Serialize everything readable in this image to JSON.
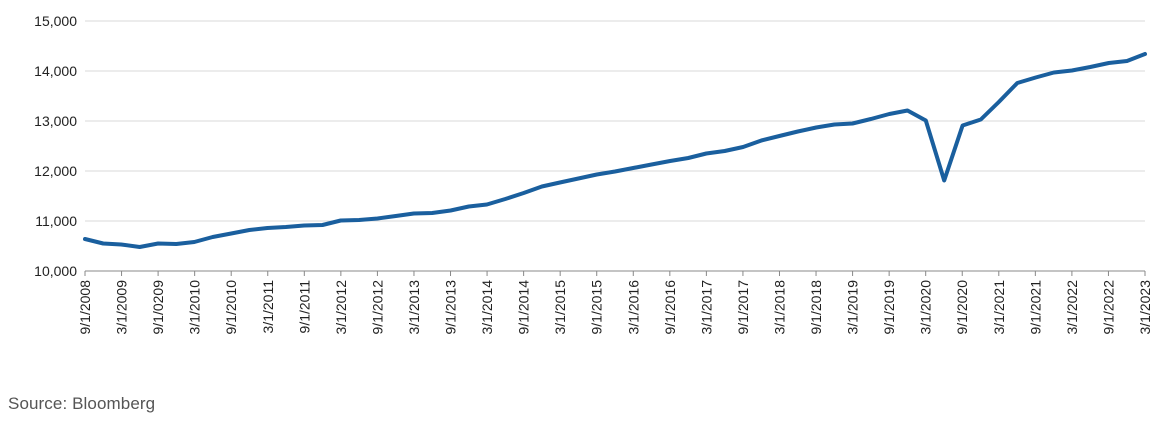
{
  "source_note": "Source: Bloomberg",
  "chart_data": {
    "type": "line",
    "title": "",
    "xlabel": "",
    "ylabel": "",
    "ylim": [
      10000,
      15000
    ],
    "yticks": [
      10000,
      11000,
      12000,
      13000,
      14000,
      15000
    ],
    "ytick_labels": [
      "10,000",
      "11,000",
      "12,000",
      "13,000",
      "14,000",
      "15,000"
    ],
    "xlim": [
      "2008-09-01",
      "2023-03-01"
    ],
    "xtick_labels": [
      "9/1/2008",
      "3/1/2009",
      "9/1/0209",
      "3/1/2010",
      "9/1/2010",
      "3/1/2011",
      "9/1/2011",
      "3/1/2012",
      "9/1/2012",
      "3/1/2013",
      "9/1/2013",
      "3/1/2014",
      "9/1/2014",
      "3/1/2015",
      "9/1/2015",
      "3/1/2016",
      "9/1/2016",
      "3/1/2017",
      "9/1/2017",
      "3/1/2018",
      "9/1/2018",
      "3/1/2019",
      "9/1/2019",
      "3/1/2020",
      "9/1/2020",
      "3/1/2021",
      "9/1/2021",
      "3/1/2022",
      "9/1/2022",
      "3/1/2023"
    ],
    "grid": true,
    "legend": "none",
    "colors": {
      "line": "#1a5f9e",
      "grid": "#d9d9d9",
      "axis": "#888888"
    },
    "series": [
      {
        "x": [
          "2008-09-01",
          "2008-12-01",
          "2009-03-01",
          "2009-06-01",
          "2009-09-01",
          "2009-12-01",
          "2010-03-01",
          "2010-06-01",
          "2010-09-01",
          "2010-12-01",
          "2011-03-01",
          "2011-06-01",
          "2011-09-01",
          "2011-12-01",
          "2012-03-01",
          "2012-06-01",
          "2012-09-01",
          "2012-12-01",
          "2013-03-01",
          "2013-06-01",
          "2013-09-01",
          "2013-12-01",
          "2014-03-01",
          "2014-06-01",
          "2014-09-01",
          "2014-12-01",
          "2015-03-01",
          "2015-06-01",
          "2015-09-01",
          "2015-12-01",
          "2016-03-01",
          "2016-06-01",
          "2016-09-01",
          "2016-12-01",
          "2017-03-01",
          "2017-06-01",
          "2017-09-01",
          "2017-12-01",
          "2018-03-01",
          "2018-06-01",
          "2018-09-01",
          "2018-12-01",
          "2019-03-01",
          "2019-06-01",
          "2019-09-01",
          "2019-12-01",
          "2020-03-01",
          "2020-06-01",
          "2020-09-01",
          "2020-12-01",
          "2021-03-01",
          "2021-06-01",
          "2021-09-01",
          "2021-12-01",
          "2022-03-01",
          "2022-06-01",
          "2022-09-01",
          "2022-12-01",
          "2023-03-01"
        ],
        "values": [
          10640,
          10550,
          10530,
          10480,
          10550,
          10540,
          10580,
          10680,
          10750,
          10820,
          10860,
          10880,
          10910,
          10920,
          11010,
          11020,
          11050,
          11100,
          11150,
          11160,
          11210,
          11290,
          11330,
          11440,
          11560,
          11690,
          11770,
          11850,
          11930,
          11990,
          12060,
          12130,
          12200,
          12260,
          12350,
          12400,
          12480,
          12610,
          12700,
          12790,
          12870,
          12930,
          12950,
          13040,
          13140,
          13210,
          13010,
          11810,
          12910,
          13030,
          13380,
          13760,
          13870,
          13970,
          14010,
          14080,
          14160,
          14200,
          14340
        ]
      }
    ]
  }
}
